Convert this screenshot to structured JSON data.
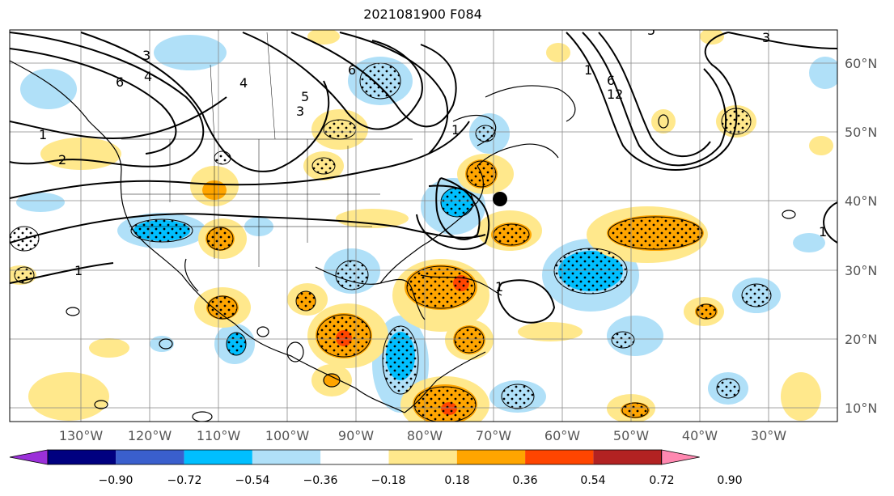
{
  "title": "2021081900 F084",
  "lon_labels": [
    "130°W",
    "120°W",
    "110°W",
    "100°W",
    "90°W",
    "80°W",
    "70°W",
    "60°W",
    "50°W",
    "40°W",
    "30°W"
  ],
  "lat_labels": [
    "60°N",
    "50°N",
    "40°N",
    "30°N",
    "20°N",
    "10°N"
  ],
  "colorbar": {
    "ticks": [
      "−0.90",
      "−0.72",
      "−0.54",
      "−0.36",
      "−0.18",
      "0.18",
      "0.36",
      "0.54",
      "0.72",
      "0.90"
    ],
    "colors": [
      "#9b30d9",
      "#000080",
      "#3a5fcd",
      "#00bfff",
      "#b0e0f8",
      "#ffffff",
      "#ffe88c",
      "#ffa500",
      "#ff4500",
      "#b22222",
      "#ff88b0"
    ]
  },
  "contour_labels": [
    "3",
    "6",
    "4",
    "4",
    "6",
    "5",
    "3",
    "1",
    "2",
    "1",
    "1",
    "6",
    "1",
    "12",
    "5",
    "3",
    "1",
    "1"
  ],
  "marker": "storm-position-dot"
}
